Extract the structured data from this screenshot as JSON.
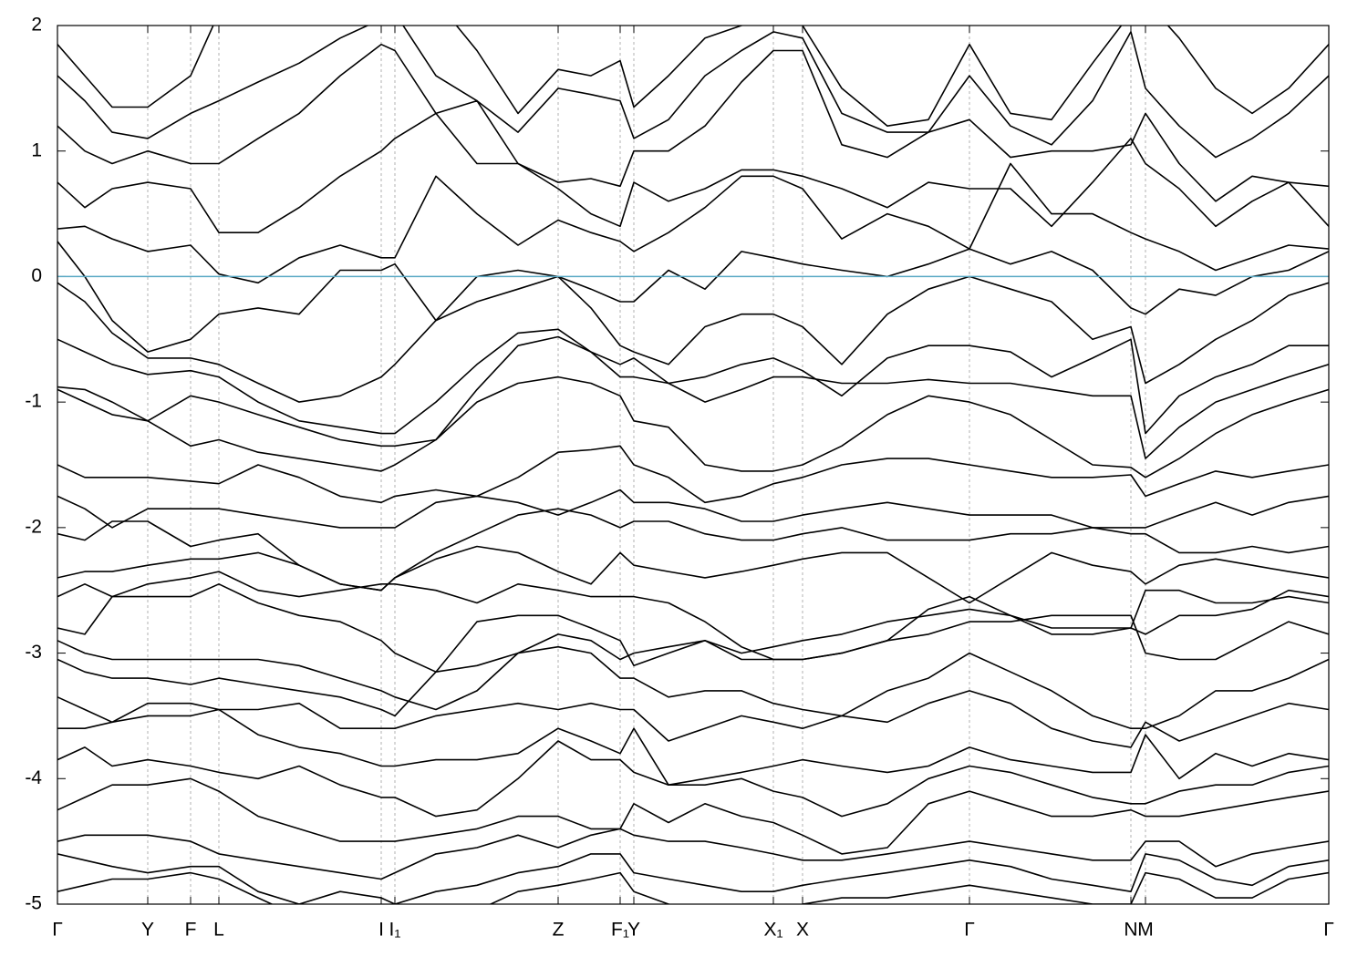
{
  "chart_data": {
    "type": "line",
    "x": [
      0,
      0.3,
      0.6,
      0.99,
      1.46,
      1.77,
      2.2,
      2.65,
      3.1,
      3.55,
      3.7,
      4.15,
      4.6,
      5.05,
      5.49,
      5.85,
      6.17,
      6.32,
      6.7,
      7.1,
      7.5,
      7.85,
      8.17,
      8.6,
      9.1,
      9.55,
      10.0,
      10.45,
      10.9,
      11.35,
      11.77,
      11.93,
      12.3,
      12.7,
      13.1,
      13.5,
      13.94
    ],
    "xlim": [
      0,
      13.94
    ],
    "xticks": [
      {
        "value": 0,
        "label": "Γ"
      },
      {
        "value": 0.99,
        "label": "Y"
      },
      {
        "value": 1.46,
        "label": "F"
      },
      {
        "value": 1.77,
        "label": "L"
      },
      {
        "value": 3.55,
        "label": "I"
      },
      {
        "value": 3.7,
        "label": "I₁"
      },
      {
        "value": 5.49,
        "label": "Z"
      },
      {
        "value": 6.17,
        "label": "F₁"
      },
      {
        "value": 6.32,
        "label": "Y"
      },
      {
        "value": 7.85,
        "label": "X₁"
      },
      {
        "value": 8.17,
        "label": "X"
      },
      {
        "value": 10.0,
        "label": "Γ"
      },
      {
        "value": 11.77,
        "label": "N"
      },
      {
        "value": 11.93,
        "label": "M"
      },
      {
        "value": 13.94,
        "label": "Γ"
      }
    ],
    "ylim": [
      -5,
      2
    ],
    "yticks": [
      -5,
      -4,
      -3,
      -2,
      -1,
      0,
      1,
      2
    ],
    "grid": true,
    "line_color": "#000000",
    "fermi_level": 0,
    "fermi_color": "#5aa9c4",
    "series": [
      {
        "values": [
          1.85,
          1.6,
          1.35,
          1.35,
          1.6,
          2.1,
          2.5,
          2.6,
          2.6,
          2.5,
          2.4,
          2.2,
          1.8,
          1.3,
          1.65,
          1.6,
          1.72,
          1.35,
          1.6,
          1.9,
          2.0,
          2.1,
          2.0,
          1.5,
          1.2,
          1.25,
          1.85,
          1.3,
          1.25,
          1.7,
          2.1,
          2.2,
          1.9,
          1.5,
          1.3,
          1.5,
          1.85
        ]
      },
      {
        "values": [
          1.6,
          1.4,
          1.15,
          1.1,
          1.3,
          1.4,
          1.55,
          1.7,
          1.9,
          2.05,
          2.1,
          1.6,
          1.4,
          1.15,
          1.5,
          1.45,
          1.4,
          1.1,
          1.25,
          1.6,
          1.8,
          1.95,
          1.9,
          1.3,
          1.15,
          1.15,
          1.6,
          1.2,
          1.05,
          1.4,
          1.95,
          1.5,
          1.2,
          0.95,
          1.1,
          1.3,
          1.6
        ]
      },
      {
        "values": [
          1.2,
          1.0,
          0.9,
          1.0,
          0.9,
          0.9,
          1.1,
          1.3,
          1.6,
          1.85,
          1.8,
          1.3,
          0.9,
          0.9,
          0.75,
          0.78,
          0.72,
          1.0,
          1.0,
          1.2,
          1.55,
          1.8,
          1.8,
          1.05,
          0.95,
          1.15,
          1.25,
          0.95,
          1.0,
          1.0,
          1.05,
          1.3,
          0.9,
          0.6,
          0.8,
          0.75,
          0.72
        ]
      },
      {
        "values": [
          0.75,
          0.55,
          0.7,
          0.75,
          0.7,
          0.35,
          0.35,
          0.55,
          0.8,
          1.0,
          1.1,
          1.3,
          1.4,
          0.9,
          0.7,
          0.5,
          0.4,
          0.75,
          0.6,
          0.7,
          0.85,
          0.85,
          0.8,
          0.7,
          0.55,
          0.75,
          0.7,
          0.7,
          0.4,
          0.75,
          1.1,
          0.9,
          0.7,
          0.4,
          0.6,
          0.75,
          0.4
        ]
      },
      {
        "values": [
          0.38,
          0.4,
          0.3,
          0.2,
          0.25,
          0.02,
          -0.05,
          0.15,
          0.25,
          0.15,
          0.15,
          0.8,
          0.5,
          0.25,
          0.45,
          0.35,
          0.28,
          0.2,
          0.35,
          0.55,
          0.8,
          0.8,
          0.7,
          0.3,
          0.5,
          0.4,
          0.22,
          0.9,
          0.5,
          0.5,
          0.35,
          0.3,
          0.2,
          0.05,
          0.15,
          0.25,
          0.22
        ]
      },
      {
        "values": [
          0.28,
          0.0,
          -0.35,
          -0.6,
          -0.5,
          -0.3,
          -0.25,
          -0.3,
          0.05,
          0.05,
          0.1,
          -0.35,
          0.0,
          0.05,
          0.0,
          -0.1,
          -0.2,
          -0.2,
          0.05,
          -0.1,
          0.2,
          0.15,
          0.1,
          0.05,
          0.0,
          0.1,
          0.22,
          0.1,
          0.2,
          0.05,
          -0.25,
          -0.3,
          -0.1,
          -0.15,
          0.0,
          0.05,
          0.2
        ]
      },
      {
        "values": [
          -0.05,
          -0.2,
          -0.45,
          -0.65,
          -0.65,
          -0.7,
          -0.85,
          -1.0,
          -0.95,
          -0.8,
          -0.7,
          -0.35,
          -0.2,
          -0.1,
          0.0,
          -0.25,
          -0.55,
          -0.6,
          -0.7,
          -0.4,
          -0.3,
          -0.3,
          -0.4,
          -0.7,
          -0.3,
          -0.1,
          0.0,
          -0.1,
          -0.2,
          -0.5,
          -0.4,
          -0.85,
          -0.7,
          -0.5,
          -0.35,
          -0.15,
          -0.05
        ]
      },
      {
        "values": [
          -0.5,
          -0.6,
          -0.7,
          -0.78,
          -0.75,
          -0.8,
          -1.0,
          -1.15,
          -1.2,
          -1.25,
          -1.25,
          -1.0,
          -0.7,
          -0.45,
          -0.42,
          -0.6,
          -0.8,
          -0.8,
          -0.85,
          -0.8,
          -0.7,
          -0.65,
          -0.75,
          -0.95,
          -0.65,
          -0.55,
          -0.55,
          -0.6,
          -0.8,
          -0.65,
          -0.5,
          -1.25,
          -0.95,
          -0.8,
          -0.7,
          -0.55,
          -0.55
        ]
      },
      {
        "values": [
          -0.88,
          -0.9,
          -1.0,
          -1.15,
          -0.95,
          -1.0,
          -1.1,
          -1.2,
          -1.3,
          -1.35,
          -1.35,
          -1.3,
          -0.9,
          -0.55,
          -0.48,
          -0.6,
          -0.7,
          -0.65,
          -0.85,
          -1.0,
          -0.9,
          -0.8,
          -0.8,
          -0.85,
          -0.85,
          -0.82,
          -0.85,
          -0.85,
          -0.9,
          -0.95,
          -0.95,
          -1.45,
          -1.2,
          -1.0,
          -0.9,
          -0.8,
          -0.7
        ]
      },
      {
        "values": [
          -0.9,
          -1.0,
          -1.1,
          -1.15,
          -1.35,
          -1.3,
          -1.4,
          -1.45,
          -1.5,
          -1.55,
          -1.5,
          -1.3,
          -1.0,
          -0.85,
          -0.8,
          -0.85,
          -0.95,
          -1.15,
          -1.2,
          -1.5,
          -1.55,
          -1.55,
          -1.5,
          -1.35,
          -1.1,
          -0.95,
          -1.0,
          -1.1,
          -1.3,
          -1.5,
          -1.52,
          -1.6,
          -1.45,
          -1.25,
          -1.1,
          -1.0,
          -0.9
        ]
      },
      {
        "values": [
          -1.5,
          -1.6,
          -1.6,
          -1.6,
          -1.63,
          -1.65,
          -1.5,
          -1.6,
          -1.75,
          -1.8,
          -1.75,
          -1.7,
          -1.75,
          -1.6,
          -1.4,
          -1.38,
          -1.35,
          -1.5,
          -1.6,
          -1.8,
          -1.75,
          -1.65,
          -1.6,
          -1.5,
          -1.45,
          -1.45,
          -1.5,
          -1.55,
          -1.6,
          -1.6,
          -1.58,
          -1.75,
          -1.65,
          -1.55,
          -1.6,
          -1.55,
          -1.5
        ]
      },
      {
        "values": [
          -1.75,
          -1.85,
          -2.0,
          -1.85,
          -1.85,
          -1.85,
          -1.9,
          -1.95,
          -2.0,
          -2.0,
          -2.0,
          -1.8,
          -1.75,
          -1.8,
          -1.9,
          -1.8,
          -1.7,
          -1.8,
          -1.8,
          -1.85,
          -1.95,
          -1.95,
          -1.9,
          -1.85,
          -1.8,
          -1.85,
          -1.9,
          -1.9,
          -1.9,
          -2.0,
          -2.0,
          -2.0,
          -1.9,
          -1.8,
          -1.9,
          -1.8,
          -1.75
        ]
      },
      {
        "values": [
          -2.05,
          -2.1,
          -1.95,
          -1.95,
          -2.15,
          -2.1,
          -2.05,
          -2.3,
          -2.45,
          -2.5,
          -2.4,
          -2.2,
          -2.05,
          -1.9,
          -1.85,
          -1.9,
          -2.0,
          -1.95,
          -1.95,
          -2.05,
          -2.1,
          -2.1,
          -2.05,
          -2.0,
          -2.1,
          -2.1,
          -2.1,
          -2.05,
          -2.05,
          -2.0,
          -2.05,
          -2.05,
          -2.2,
          -2.2,
          -2.15,
          -2.2,
          -2.15
        ]
      },
      {
        "values": [
          -2.4,
          -2.35,
          -2.35,
          -2.3,
          -2.25,
          -2.25,
          -2.2,
          -2.3,
          -2.45,
          -2.5,
          -2.4,
          -2.25,
          -2.15,
          -2.2,
          -2.35,
          -2.45,
          -2.2,
          -2.3,
          -2.35,
          -2.4,
          -2.35,
          -2.3,
          -2.25,
          -2.2,
          -2.2,
          -2.4,
          -2.6,
          -2.4,
          -2.2,
          -2.3,
          -2.35,
          -2.45,
          -2.3,
          -2.25,
          -2.3,
          -2.35,
          -2.4
        ]
      },
      {
        "values": [
          -2.55,
          -2.45,
          -2.55,
          -2.45,
          -2.4,
          -2.35,
          -2.5,
          -2.55,
          -2.5,
          -2.45,
          -2.45,
          -2.5,
          -2.6,
          -2.45,
          -2.5,
          -2.55,
          -2.55,
          -2.55,
          -2.6,
          -2.75,
          -2.95,
          -3.05,
          -3.05,
          -3.0,
          -2.9,
          -2.65,
          -2.55,
          -2.7,
          -2.85,
          -2.85,
          -2.8,
          -2.5,
          -2.5,
          -2.6,
          -2.6,
          -2.55,
          -2.6
        ]
      },
      {
        "values": [
          -2.8,
          -2.85,
          -2.55,
          -2.55,
          -2.55,
          -2.45,
          -2.6,
          -2.7,
          -2.75,
          -2.9,
          -3.0,
          -3.15,
          -2.75,
          -2.7,
          -2.7,
          -2.8,
          -2.9,
          -3.1,
          -3.0,
          -2.9,
          -3.0,
          -2.95,
          -2.9,
          -2.85,
          -2.75,
          -2.7,
          -2.65,
          -2.7,
          -2.8,
          -2.8,
          -2.8,
          -2.85,
          -2.7,
          -2.7,
          -2.65,
          -2.5,
          -2.55
        ]
      },
      {
        "values": [
          -2.9,
          -3.0,
          -3.05,
          -3.05,
          -3.05,
          -3.05,
          -3.05,
          -3.1,
          -3.2,
          -3.3,
          -3.35,
          -3.45,
          -3.3,
          -3.0,
          -2.85,
          -2.9,
          -3.05,
          -3.0,
          -2.95,
          -2.9,
          -3.05,
          -3.05,
          -3.05,
          -3.0,
          -2.9,
          -2.85,
          -2.75,
          -2.75,
          -2.7,
          -2.7,
          -2.7,
          -3.0,
          -3.05,
          -3.05,
          -2.9,
          -2.75,
          -2.85
        ]
      },
      {
        "values": [
          -3.05,
          -3.15,
          -3.2,
          -3.2,
          -3.25,
          -3.2,
          -3.25,
          -3.3,
          -3.35,
          -3.45,
          -3.5,
          -3.15,
          -3.1,
          -3.0,
          -2.95,
          -3.0,
          -3.2,
          -3.2,
          -3.35,
          -3.3,
          -3.3,
          -3.4,
          -3.45,
          -3.5,
          -3.3,
          -3.2,
          -3.0,
          -3.15,
          -3.3,
          -3.5,
          -3.6,
          -3.6,
          -3.5,
          -3.3,
          -3.3,
          -3.2,
          -3.05
        ]
      },
      {
        "values": [
          -3.35,
          -3.45,
          -3.55,
          -3.4,
          -3.4,
          -3.45,
          -3.45,
          -3.4,
          -3.6,
          -3.6,
          -3.6,
          -3.5,
          -3.45,
          -3.4,
          -3.45,
          -3.4,
          -3.45,
          -3.45,
          -3.7,
          -3.6,
          -3.5,
          -3.55,
          -3.6,
          -3.5,
          -3.55,
          -3.4,
          -3.3,
          -3.4,
          -3.6,
          -3.7,
          -3.75,
          -3.55,
          -3.7,
          -3.6,
          -3.5,
          -3.4,
          -3.45
        ]
      },
      {
        "values": [
          -3.6,
          -3.6,
          -3.55,
          -3.5,
          -3.5,
          -3.45,
          -3.65,
          -3.75,
          -3.8,
          -3.9,
          -3.9,
          -3.85,
          -3.85,
          -3.8,
          -3.6,
          -3.7,
          -3.8,
          -3.6,
          -4.05,
          -4.0,
          -3.95,
          -3.9,
          -3.85,
          -3.9,
          -3.95,
          -3.9,
          -3.75,
          -3.85,
          -3.9,
          -3.95,
          -3.95,
          -3.65,
          -4.0,
          -3.8,
          -3.9,
          -3.8,
          -3.85
        ]
      },
      {
        "values": [
          -3.85,
          -3.75,
          -3.9,
          -3.85,
          -3.9,
          -3.95,
          -4.0,
          -3.9,
          -4.05,
          -4.15,
          -4.15,
          -4.3,
          -4.25,
          -4.0,
          -3.7,
          -3.85,
          -3.85,
          -3.95,
          -4.05,
          -4.05,
          -4.0,
          -4.1,
          -4.15,
          -4.3,
          -4.2,
          -4.0,
          -3.9,
          -3.95,
          -4.05,
          -4.15,
          -4.2,
          -4.2,
          -4.1,
          -4.05,
          -4.05,
          -3.95,
          -3.9
        ]
      },
      {
        "values": [
          -4.25,
          -4.15,
          -4.05,
          -4.05,
          -4.0,
          -4.1,
          -4.3,
          -4.4,
          -4.5,
          -4.5,
          -4.5,
          -4.45,
          -4.4,
          -4.3,
          -4.3,
          -4.4,
          -4.4,
          -4.2,
          -4.35,
          -4.2,
          -4.3,
          -4.35,
          -4.45,
          -4.6,
          -4.55,
          -4.2,
          -4.1,
          -4.2,
          -4.3,
          -4.3,
          -4.25,
          -4.3,
          -4.3,
          -4.25,
          -4.2,
          -4.15,
          -4.1
        ]
      },
      {
        "values": [
          -4.5,
          -4.45,
          -4.45,
          -4.45,
          -4.5,
          -4.6,
          -4.65,
          -4.7,
          -4.75,
          -4.8,
          -4.75,
          -4.6,
          -4.55,
          -4.45,
          -4.55,
          -4.45,
          -4.4,
          -4.45,
          -4.5,
          -4.5,
          -4.55,
          -4.6,
          -4.65,
          -4.65,
          -4.6,
          -4.55,
          -4.5,
          -4.55,
          -4.6,
          -4.65,
          -4.65,
          -4.5,
          -4.5,
          -4.7,
          -4.6,
          -4.55,
          -4.5
        ]
      },
      {
        "values": [
          -4.6,
          -4.65,
          -4.7,
          -4.75,
          -4.7,
          -4.7,
          -4.9,
          -5.0,
          -4.9,
          -4.95,
          -5.0,
          -4.9,
          -4.85,
          -4.75,
          -4.7,
          -4.6,
          -4.6,
          -4.75,
          -4.8,
          -4.85,
          -4.9,
          -4.9,
          -4.85,
          -4.8,
          -4.75,
          -4.7,
          -4.65,
          -4.7,
          -4.8,
          -4.85,
          -4.9,
          -4.6,
          -4.65,
          -4.8,
          -4.85,
          -4.7,
          -4.65
        ]
      },
      {
        "values": [
          -4.9,
          -4.85,
          -4.8,
          -4.8,
          -4.75,
          -4.8,
          -4.95,
          -5.1,
          -5.1,
          -5.1,
          -5.1,
          -5.1,
          -5.05,
          -4.9,
          -4.85,
          -4.8,
          -4.75,
          -4.9,
          -5.0,
          -5.1,
          -5.1,
          -5.1,
          -5.0,
          -4.95,
          -4.95,
          -4.9,
          -4.85,
          -4.9,
          -4.95,
          -5.0,
          -5.0,
          -4.75,
          -4.8,
          -4.95,
          -4.95,
          -4.8,
          -4.75
        ]
      }
    ]
  }
}
